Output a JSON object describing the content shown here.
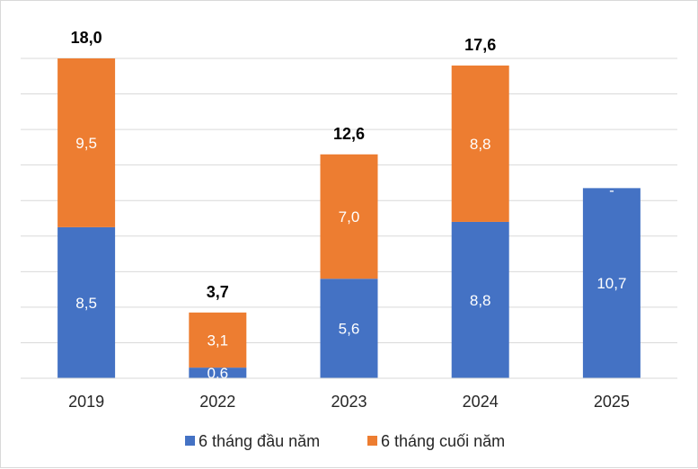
{
  "chart_data": {
    "type": "bar",
    "stacked": true,
    "categories": [
      "2019",
      "2022",
      "2023",
      "2024",
      "2025"
    ],
    "series": [
      {
        "name": "6 tháng đầu năm",
        "values": [
          8.5,
          0.6,
          5.6,
          8.8,
          10.7
        ],
        "labels": [
          "8,5",
          "0,6",
          "5,6",
          "8,8",
          "10,7"
        ],
        "color": "#4472C4"
      },
      {
        "name": "6 tháng cuối năm",
        "values": [
          9.5,
          3.1,
          7.0,
          8.8,
          null
        ],
        "labels": [
          "9,5",
          "3,1",
          "7,0",
          "8,8",
          "-"
        ],
        "color": "#ED7D31"
      }
    ],
    "totals": [
      "18,0",
      "3,7",
      "12,6",
      "17,6",
      ""
    ],
    "ylim": [
      0,
      18
    ],
    "grid": true,
    "legend_position": "bottom"
  }
}
